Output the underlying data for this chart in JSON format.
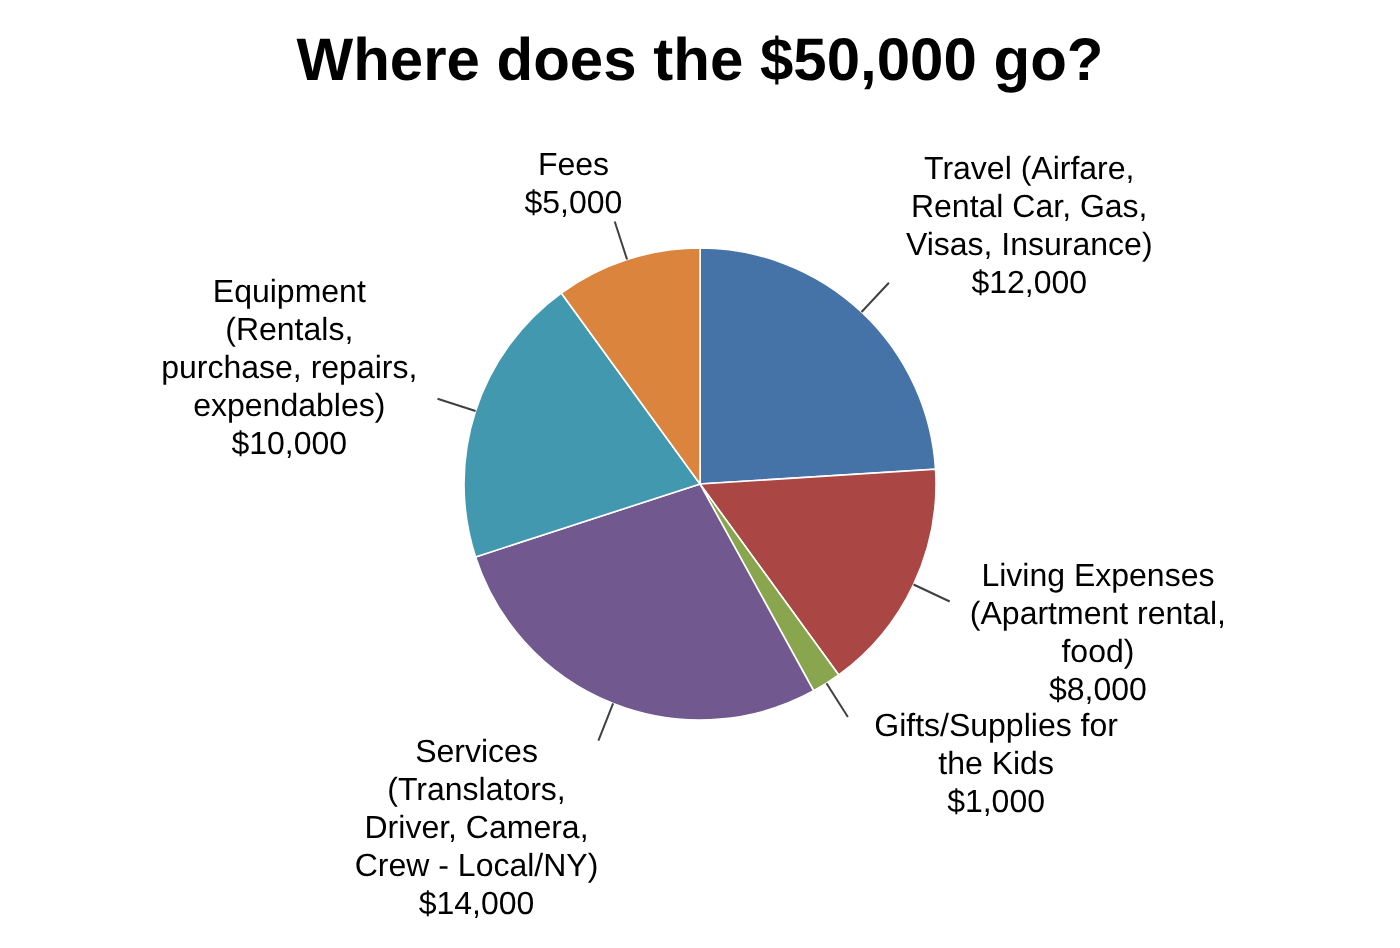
{
  "chart_data": {
    "type": "pie",
    "title": "Where does the $50,000 go?",
    "categories": [
      "Travel (Airfare, Rental Car, Gas, Visas, Insurance)",
      "Living Expenses (Apartment rental, food)",
      "Gifts/Supplies for the Kids",
      "Services (Translators, Driver, Camera, Crew - Local/NY)",
      "Equipment (Rentals, purchase, repairs, expendables)",
      "Fees"
    ],
    "values": [
      12000,
      8000,
      1000,
      14000,
      10000,
      5000
    ],
    "colors": [
      "#4572a7",
      "#aa4643",
      "#89a54e",
      "#71588f",
      "#4198af",
      "#db843d"
    ],
    "value_labels": [
      "$12,000",
      "$8,000",
      "$1,000",
      "$14,000",
      "$10,000",
      "$5,000"
    ]
  }
}
